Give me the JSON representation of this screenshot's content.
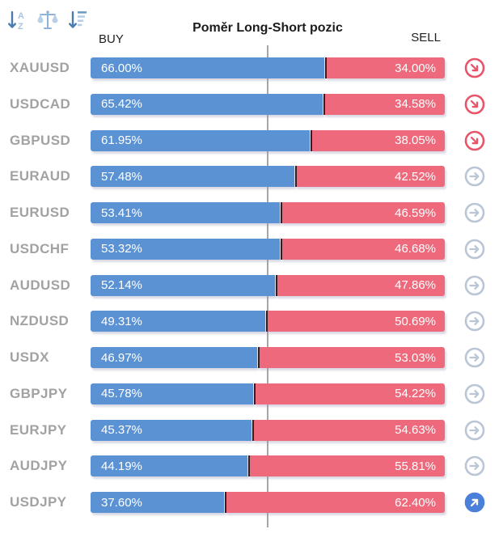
{
  "widget": {
    "title": "Poměr Long-Short pozic",
    "buy_header": "BUY",
    "sell_header": "SELL"
  },
  "toolbar": {
    "icons": [
      {
        "name": "sort-alphabetical-icon",
        "letters": [
          "A",
          "Z"
        ]
      },
      {
        "name": "balance-scale-icon"
      },
      {
        "name": "sort-amount-icon"
      }
    ]
  },
  "colors": {
    "buy_bar": "#5b92d3",
    "sell_bar": "#ee697b",
    "bar_divider": "#371c23",
    "center_line": "#a6a6a6",
    "symbol_text": "#a2a2a2",
    "icon_down": "#e8556a",
    "icon_flat": "#bac5d5",
    "icon_up": "#4a80d9"
  },
  "chart_data": {
    "type": "bar",
    "orientation": "horizontal",
    "stacked": true,
    "title": "Poměr Long-Short pozic",
    "xlim": [
      0,
      100
    ],
    "center_reference": 50,
    "legend_position": "top",
    "categories": [
      "XAUUSD",
      "USDCAD",
      "GBPUSD",
      "EURAUD",
      "EURUSD",
      "USDCHF",
      "AUDUSD",
      "NZDUSD",
      "USDX",
      "GBPJPY",
      "EURJPY",
      "AUDJPY",
      "USDJPY"
    ],
    "series": [
      {
        "name": "BUY",
        "color": "#5b92d3",
        "values": [
          66.0,
          65.42,
          61.95,
          57.48,
          53.41,
          53.32,
          52.14,
          49.31,
          46.97,
          45.78,
          45.37,
          44.19,
          37.6
        ]
      },
      {
        "name": "SELL",
        "color": "#ee697b",
        "values": [
          34.0,
          34.58,
          38.05,
          42.52,
          46.59,
          46.68,
          47.86,
          50.69,
          53.03,
          54.22,
          54.63,
          55.81,
          62.4
        ]
      }
    ],
    "rows": [
      {
        "symbol": "XAUUSD",
        "buy": 66.0,
        "sell": 34.0,
        "buy_label": "66.00%",
        "sell_label": "34.00%",
        "trend": "down"
      },
      {
        "symbol": "USDCAD",
        "buy": 65.42,
        "sell": 34.58,
        "buy_label": "65.42%",
        "sell_label": "34.58%",
        "trend": "down"
      },
      {
        "symbol": "GBPUSD",
        "buy": 61.95,
        "sell": 38.05,
        "buy_label": "61.95%",
        "sell_label": "38.05%",
        "trend": "down"
      },
      {
        "symbol": "EURAUD",
        "buy": 57.48,
        "sell": 42.52,
        "buy_label": "57.48%",
        "sell_label": "42.52%",
        "trend": "flat"
      },
      {
        "symbol": "EURUSD",
        "buy": 53.41,
        "sell": 46.59,
        "buy_label": "53.41%",
        "sell_label": "46.59%",
        "trend": "flat"
      },
      {
        "symbol": "USDCHF",
        "buy": 53.32,
        "sell": 46.68,
        "buy_label": "53.32%",
        "sell_label": "46.68%",
        "trend": "flat"
      },
      {
        "symbol": "AUDUSD",
        "buy": 52.14,
        "sell": 47.86,
        "buy_label": "52.14%",
        "sell_label": "47.86%",
        "trend": "flat"
      },
      {
        "symbol": "NZDUSD",
        "buy": 49.31,
        "sell": 50.69,
        "buy_label": "49.31%",
        "sell_label": "50.69%",
        "trend": "flat"
      },
      {
        "symbol": "USDX",
        "buy": 46.97,
        "sell": 53.03,
        "buy_label": "46.97%",
        "sell_label": "53.03%",
        "trend": "flat"
      },
      {
        "symbol": "GBPJPY",
        "buy": 45.78,
        "sell": 54.22,
        "buy_label": "45.78%",
        "sell_label": "54.22%",
        "trend": "flat"
      },
      {
        "symbol": "EURJPY",
        "buy": 45.37,
        "sell": 54.63,
        "buy_label": "45.37%",
        "sell_label": "54.63%",
        "trend": "flat"
      },
      {
        "symbol": "AUDJPY",
        "buy": 44.19,
        "sell": 55.81,
        "buy_label": "44.19%",
        "sell_label": "55.81%",
        "trend": "flat"
      },
      {
        "symbol": "USDJPY",
        "buy": 37.6,
        "sell": 62.4,
        "buy_label": "37.60%",
        "sell_label": "62.40%",
        "trend": "up"
      }
    ]
  }
}
